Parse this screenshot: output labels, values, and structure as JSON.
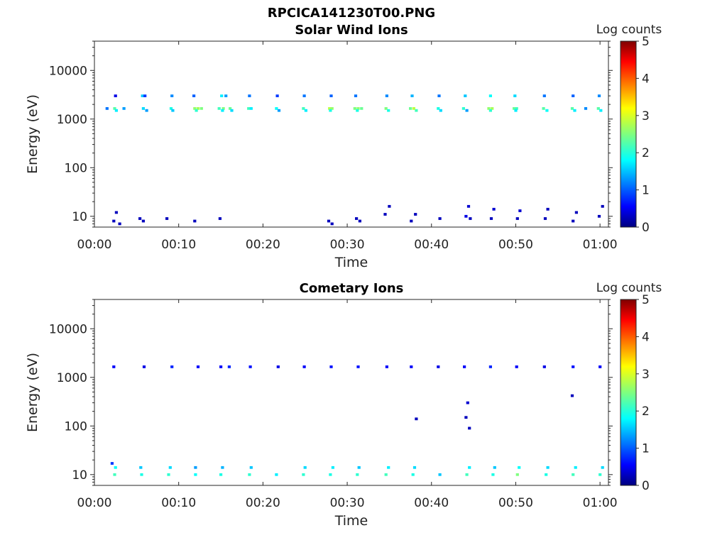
{
  "figure": {
    "title": "RPCICA141230T00.PNG"
  },
  "colorbar": {
    "label": "Log counts",
    "ticks": [
      0,
      1,
      2,
      3,
      4,
      5
    ],
    "range": [
      0,
      5
    ]
  },
  "chart_data": [
    {
      "type": "heatmap",
      "title": "Solar Wind Ions",
      "xlabel": "Time",
      "ylabel": "Energy (eV)",
      "xlim": [
        0,
        61
      ],
      "ylim": [
        6,
        40000
      ],
      "yscale": "log",
      "x_ticks": [
        "00:00",
        "00:10",
        "00:20",
        "00:30",
        "00:40",
        "00:50",
        "01:00"
      ],
      "x_tick_values": [
        0,
        10,
        20,
        30,
        40,
        50,
        60
      ],
      "y_ticks": [
        "10",
        "100",
        "1000",
        "10000"
      ],
      "y_tick_values": [
        10,
        100,
        1000,
        10000
      ],
      "colorbar_label": "Log counts",
      "colorbar_range": [
        0,
        5
      ],
      "description_of_data": "Cells: [time_min, energy_eV, log_counts]",
      "cells": [
        [
          2.4,
          1650,
          2.3
        ],
        [
          2.6,
          1500,
          1.8
        ],
        [
          3.5,
          1650,
          1.4
        ],
        [
          1.5,
          1650,
          1.2
        ],
        [
          2.5,
          3000,
          0.5
        ],
        [
          5.8,
          1650,
          1.7
        ],
        [
          6.2,
          1500,
          1.4
        ],
        [
          5.7,
          3000,
          1.6
        ],
        [
          6.0,
          3000,
          0.9
        ],
        [
          9.1,
          1650,
          2.0
        ],
        [
          9.3,
          1500,
          1.6
        ],
        [
          9.2,
          3000,
          1.3
        ],
        [
          11.9,
          1650,
          2.6
        ],
        [
          12.3,
          1650,
          2.7
        ],
        [
          12.7,
          1650,
          2.5
        ],
        [
          12.1,
          1500,
          2.1
        ],
        [
          11.8,
          3000,
          1.1
        ],
        [
          14.8,
          1650,
          2.2
        ],
        [
          15.3,
          1650,
          2.5
        ],
        [
          15.1,
          3000,
          1.8
        ],
        [
          15.6,
          3000,
          1.4
        ],
        [
          15.2,
          1500,
          1.8
        ],
        [
          16.1,
          1650,
          2.4
        ],
        [
          16.3,
          1500,
          1.7
        ],
        [
          18.3,
          1650,
          2.2
        ],
        [
          18.6,
          1650,
          1.8
        ],
        [
          18.4,
          3000,
          1.2
        ],
        [
          21.6,
          1650,
          1.9
        ],
        [
          21.9,
          1500,
          1.4
        ],
        [
          21.7,
          3000,
          0.9
        ],
        [
          24.8,
          1650,
          2.2
        ],
        [
          25.1,
          1500,
          1.8
        ],
        [
          24.9,
          3000,
          1.2
        ],
        [
          27.9,
          1650,
          2.8
        ],
        [
          28.2,
          1650,
          2.6
        ],
        [
          28.0,
          1500,
          2.0
        ],
        [
          28.1,
          3000,
          1.1
        ],
        [
          30.9,
          1650,
          2.5
        ],
        [
          31.3,
          1650,
          2.6
        ],
        [
          31.7,
          1650,
          2.4
        ],
        [
          31.2,
          1500,
          2.0
        ],
        [
          31.0,
          3000,
          1.2
        ],
        [
          34.6,
          1650,
          2.5
        ],
        [
          34.9,
          1500,
          2.0
        ],
        [
          34.7,
          3000,
          1.3
        ],
        [
          37.5,
          1650,
          2.4
        ],
        [
          37.9,
          1650,
          2.8
        ],
        [
          38.2,
          1500,
          2.2
        ],
        [
          37.7,
          3000,
          1.5
        ],
        [
          40.8,
          1650,
          2.0
        ],
        [
          41.1,
          1500,
          1.7
        ],
        [
          40.9,
          3000,
          1.2
        ],
        [
          43.8,
          1650,
          2.1
        ],
        [
          44.0,
          3000,
          1.6
        ],
        [
          44.2,
          1500,
          1.4
        ],
        [
          46.8,
          1650,
          2.6
        ],
        [
          47.2,
          1650,
          2.7
        ],
        [
          47.0,
          1500,
          2.1
        ],
        [
          47.0,
          3000,
          1.9
        ],
        [
          49.8,
          1650,
          2.4
        ],
        [
          50.1,
          1650,
          2.2
        ],
        [
          49.9,
          3000,
          1.7
        ],
        [
          50.0,
          1500,
          1.8
        ],
        [
          53.3,
          1650,
          2.3
        ],
        [
          53.7,
          1500,
          1.9
        ],
        [
          53.4,
          3000,
          1.2
        ],
        [
          56.7,
          1650,
          2.3
        ],
        [
          57.0,
          1500,
          1.8
        ],
        [
          56.8,
          3000,
          1.1
        ],
        [
          59.8,
          1650,
          2.3
        ],
        [
          60.1,
          1500,
          1.8
        ],
        [
          59.9,
          3000,
          1.3
        ],
        [
          58.3,
          1650,
          1.3
        ],
        [
          2.3,
          8,
          0.3
        ],
        [
          2.6,
          12,
          0.3
        ],
        [
          3.0,
          7,
          0.3
        ],
        [
          5.4,
          9,
          0.3
        ],
        [
          5.8,
          8,
          0.3
        ],
        [
          8.6,
          9,
          0.3
        ],
        [
          11.9,
          8,
          0.3
        ],
        [
          14.9,
          9,
          0.3
        ],
        [
          27.8,
          8,
          0.3
        ],
        [
          28.2,
          7,
          0.3
        ],
        [
          31.1,
          9,
          0.3
        ],
        [
          31.5,
          8,
          0.3
        ],
        [
          34.5,
          11,
          0.3
        ],
        [
          35.0,
          16,
          0.3
        ],
        [
          37.6,
          8,
          0.3
        ],
        [
          38.1,
          11,
          0.3
        ],
        [
          41.0,
          9,
          0.3
        ],
        [
          44.1,
          10,
          0.5
        ],
        [
          44.4,
          16,
          0.4
        ],
        [
          44.6,
          9,
          0.3
        ],
        [
          47.1,
          9,
          0.3
        ],
        [
          47.4,
          14,
          0.4
        ],
        [
          50.2,
          9,
          0.3
        ],
        [
          50.5,
          13,
          0.4
        ],
        [
          53.5,
          9,
          0.3
        ],
        [
          53.8,
          14,
          0.3
        ],
        [
          56.8,
          8,
          0.3
        ],
        [
          57.2,
          12,
          0.3
        ],
        [
          59.9,
          10,
          0.3
        ],
        [
          60.3,
          16,
          0.3
        ]
      ]
    },
    {
      "type": "heatmap",
      "title": "Cometary Ions",
      "xlabel": "Time",
      "ylabel": "Energy (eV)",
      "xlim": [
        0,
        61
      ],
      "ylim": [
        6,
        40000
      ],
      "yscale": "log",
      "x_ticks": [
        "00:00",
        "00:10",
        "00:20",
        "00:30",
        "00:40",
        "00:50",
        "01:00"
      ],
      "x_tick_values": [
        0,
        10,
        20,
        30,
        40,
        50,
        60
      ],
      "y_ticks": [
        "10",
        "100",
        "1000",
        "10000"
      ],
      "y_tick_values": [
        10,
        100,
        1000,
        10000
      ],
      "colorbar_label": "Log counts",
      "colorbar_range": [
        0,
        5
      ],
      "description_of_data": "Cells: [time_min, energy_eV, log_counts]",
      "cells": [
        [
          2.4,
          10,
          2.2
        ],
        [
          2.5,
          14,
          1.9
        ],
        [
          2.1,
          17,
          0.9
        ],
        [
          5.6,
          10,
          2.0
        ],
        [
          5.5,
          14,
          1.6
        ],
        [
          8.8,
          10,
          2.1
        ],
        [
          9.0,
          14,
          1.7
        ],
        [
          12.0,
          10,
          1.9
        ],
        [
          12.0,
          14,
          1.4
        ],
        [
          15.0,
          10,
          2.0
        ],
        [
          15.2,
          14,
          1.5
        ],
        [
          18.4,
          10,
          2.1
        ],
        [
          18.6,
          14,
          1.6
        ],
        [
          21.6,
          10,
          1.8
        ],
        [
          24.8,
          10,
          2.1
        ],
        [
          25.0,
          14,
          1.7
        ],
        [
          28.0,
          10,
          2.0
        ],
        [
          28.3,
          14,
          1.8
        ],
        [
          31.2,
          10,
          2.1
        ],
        [
          31.4,
          14,
          1.6
        ],
        [
          34.6,
          10,
          2.2
        ],
        [
          34.9,
          14,
          1.8
        ],
        [
          37.8,
          10,
          2.0
        ],
        [
          38.0,
          14,
          1.7
        ],
        [
          41.0,
          10,
          1.6
        ],
        [
          44.2,
          10,
          2.2
        ],
        [
          44.5,
          14,
          1.8
        ],
        [
          47.3,
          10,
          2.0
        ],
        [
          47.5,
          14,
          1.6
        ],
        [
          50.2,
          10,
          2.5
        ],
        [
          50.4,
          14,
          1.9
        ],
        [
          53.6,
          10,
          2.0
        ],
        [
          53.8,
          14,
          1.7
        ],
        [
          56.8,
          10,
          2.2
        ],
        [
          57.1,
          14,
          1.8
        ],
        [
          60.0,
          10,
          2.1
        ],
        [
          60.3,
          14,
          1.7
        ],
        [
          2.3,
          1650,
          0.6
        ],
        [
          5.9,
          1650,
          0.5
        ],
        [
          9.2,
          1650,
          0.8
        ],
        [
          12.3,
          1650,
          0.6
        ],
        [
          15.0,
          1650,
          0.6
        ],
        [
          16.0,
          1650,
          0.8
        ],
        [
          18.5,
          1650,
          0.7
        ],
        [
          21.8,
          1650,
          0.5
        ],
        [
          24.9,
          1650,
          0.6
        ],
        [
          28.1,
          1650,
          0.7
        ],
        [
          31.3,
          1650,
          0.7
        ],
        [
          34.7,
          1650,
          0.6
        ],
        [
          37.6,
          1650,
          0.6
        ],
        [
          40.8,
          1650,
          0.5
        ],
        [
          43.9,
          1650,
          0.6
        ],
        [
          47.0,
          1650,
          0.8
        ],
        [
          50.1,
          1650,
          0.6
        ],
        [
          53.4,
          1650,
          0.5
        ],
        [
          56.8,
          1650,
          0.7
        ],
        [
          60.0,
          1650,
          0.6
        ],
        [
          44.3,
          300,
          0.4
        ],
        [
          44.1,
          150,
          0.3
        ],
        [
          44.5,
          90,
          0.3
        ],
        [
          56.7,
          420,
          0.3
        ],
        [
          38.2,
          140,
          0.3
        ]
      ]
    }
  ]
}
